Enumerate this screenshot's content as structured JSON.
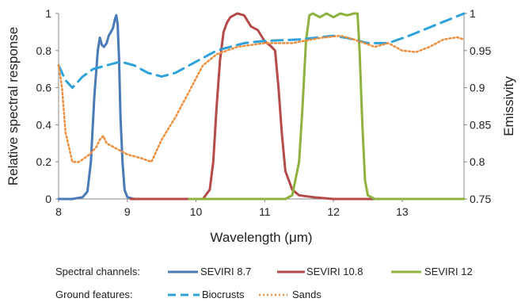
{
  "chart_data": {
    "type": "line",
    "xlabel": "Wavelength (μm)",
    "ylabel_left": "Relative spectral response",
    "ylabel_right": "Emissivity",
    "xlim": [
      8,
      13.9
    ],
    "ylim_left": [
      0,
      1
    ],
    "ylim_right": [
      0.75,
      1
    ],
    "x_ticks": [
      "8",
      "9",
      "10",
      "11",
      "12",
      "13"
    ],
    "y_ticks_left": [
      "0",
      "0.2",
      "0.4",
      "0.6",
      "0.8",
      "1"
    ],
    "y_ticks_right": [
      "0.75",
      "0.8",
      "0.85",
      "0.9",
      "0.95",
      "1"
    ],
    "grid": false,
    "legend": {
      "groups": [
        {
          "title": "Spectral channels:",
          "entries": [
            "SEVIRI 8.7",
            "SEVIRI 10.8",
            "SEVIRI 12"
          ]
        },
        {
          "title": "Ground features:",
          "entries": [
            "Biocrusts",
            "Sands"
          ]
        }
      ]
    },
    "series": [
      {
        "name": "SEVIRI 8.7",
        "axis": "left",
        "color": "#4a7ab8",
        "style": "solid",
        "points": [
          [
            8.0,
            0.0
          ],
          [
            8.2,
            0.0
          ],
          [
            8.35,
            0.01
          ],
          [
            8.42,
            0.04
          ],
          [
            8.47,
            0.2
          ],
          [
            8.52,
            0.55
          ],
          [
            8.57,
            0.8
          ],
          [
            8.6,
            0.87
          ],
          [
            8.63,
            0.83
          ],
          [
            8.66,
            0.82
          ],
          [
            8.7,
            0.84
          ],
          [
            8.73,
            0.88
          ],
          [
            8.76,
            0.9
          ],
          [
            8.79,
            0.92
          ],
          [
            8.82,
            0.97
          ],
          [
            8.84,
            0.99
          ],
          [
            8.86,
            0.94
          ],
          [
            8.88,
            0.75
          ],
          [
            8.9,
            0.45
          ],
          [
            8.93,
            0.2
          ],
          [
            8.96,
            0.05
          ],
          [
            9.0,
            0.01
          ],
          [
            9.1,
            0.0
          ]
        ]
      },
      {
        "name": "SEVIRI 10.8",
        "axis": "left",
        "color": "#b64a48",
        "style": "solid",
        "points": [
          [
            9.05,
            0.0
          ],
          [
            10.1,
            0.0
          ],
          [
            10.2,
            0.05
          ],
          [
            10.25,
            0.2
          ],
          [
            10.3,
            0.5
          ],
          [
            10.35,
            0.75
          ],
          [
            10.4,
            0.9
          ],
          [
            10.45,
            0.95
          ],
          [
            10.5,
            0.98
          ],
          [
            10.55,
            0.99
          ],
          [
            10.6,
            1.0
          ],
          [
            10.7,
            0.99
          ],
          [
            10.8,
            0.93
          ],
          [
            10.9,
            0.91
          ],
          [
            11.0,
            0.85
          ],
          [
            11.1,
            0.82
          ],
          [
            11.15,
            0.8
          ],
          [
            11.2,
            0.6
          ],
          [
            11.25,
            0.35
          ],
          [
            11.3,
            0.15
          ],
          [
            11.4,
            0.05
          ],
          [
            11.5,
            0.02
          ],
          [
            11.7,
            0.01
          ],
          [
            12.0,
            0.0
          ],
          [
            12.8,
            0.0
          ]
        ]
      },
      {
        "name": "SEVIRI 12",
        "axis": "left",
        "color": "#8db33e",
        "style": "solid",
        "points": [
          [
            9.9,
            0.0
          ],
          [
            11.3,
            0.0
          ],
          [
            11.4,
            0.02
          ],
          [
            11.5,
            0.2
          ],
          [
            11.55,
            0.5
          ],
          [
            11.6,
            0.85
          ],
          [
            11.65,
            0.99
          ],
          [
            11.7,
            1.0
          ],
          [
            11.8,
            0.98
          ],
          [
            11.9,
            1.0
          ],
          [
            12.0,
            0.98
          ],
          [
            12.1,
            1.0
          ],
          [
            12.2,
            0.99
          ],
          [
            12.3,
            1.0
          ],
          [
            12.35,
            1.0
          ],
          [
            12.38,
            0.8
          ],
          [
            12.42,
            0.4
          ],
          [
            12.46,
            0.1
          ],
          [
            12.5,
            0.02
          ],
          [
            12.6,
            0.0
          ],
          [
            13.9,
            0.0
          ]
        ]
      },
      {
        "name": "Biocrusts",
        "axis": "right",
        "color": "#2fa1db",
        "style": "dashed",
        "points": [
          [
            8.0,
            0.93
          ],
          [
            8.1,
            0.91
          ],
          [
            8.2,
            0.9
          ],
          [
            8.35,
            0.915
          ],
          [
            8.5,
            0.925
          ],
          [
            8.7,
            0.93
          ],
          [
            8.9,
            0.935
          ],
          [
            9.1,
            0.93
          ],
          [
            9.3,
            0.92
          ],
          [
            9.5,
            0.915
          ],
          [
            9.7,
            0.92
          ],
          [
            10.0,
            0.935
          ],
          [
            10.3,
            0.95
          ],
          [
            10.7,
            0.96
          ],
          [
            11.0,
            0.963
          ],
          [
            11.5,
            0.965
          ],
          [
            12.0,
            0.97
          ],
          [
            12.2,
            0.967
          ],
          [
            12.5,
            0.96
          ],
          [
            12.8,
            0.96
          ],
          [
            13.1,
            0.97
          ],
          [
            13.5,
            0.985
          ],
          [
            13.9,
            1.0
          ]
        ]
      },
      {
        "name": "Sands",
        "axis": "right",
        "color": "#ef8e3d",
        "style": "dotted",
        "points": [
          [
            8.0,
            0.93
          ],
          [
            8.05,
            0.9
          ],
          [
            8.1,
            0.84
          ],
          [
            8.2,
            0.8
          ],
          [
            8.3,
            0.8
          ],
          [
            8.45,
            0.81
          ],
          [
            8.55,
            0.82
          ],
          [
            8.6,
            0.83
          ],
          [
            8.65,
            0.835
          ],
          [
            8.7,
            0.825
          ],
          [
            8.8,
            0.82
          ],
          [
            9.0,
            0.81
          ],
          [
            9.2,
            0.805
          ],
          [
            9.35,
            0.8
          ],
          [
            9.5,
            0.83
          ],
          [
            9.7,
            0.86
          ],
          [
            9.9,
            0.895
          ],
          [
            10.1,
            0.93
          ],
          [
            10.3,
            0.945
          ],
          [
            10.6,
            0.955
          ],
          [
            11.0,
            0.96
          ],
          [
            11.4,
            0.96
          ],
          [
            11.8,
            0.967
          ],
          [
            12.1,
            0.97
          ],
          [
            12.3,
            0.965
          ],
          [
            12.6,
            0.955
          ],
          [
            12.8,
            0.96
          ],
          [
            13.0,
            0.95
          ],
          [
            13.2,
            0.948
          ],
          [
            13.4,
            0.955
          ],
          [
            13.6,
            0.965
          ],
          [
            13.8,
            0.968
          ],
          [
            13.9,
            0.965
          ]
        ]
      }
    ]
  }
}
